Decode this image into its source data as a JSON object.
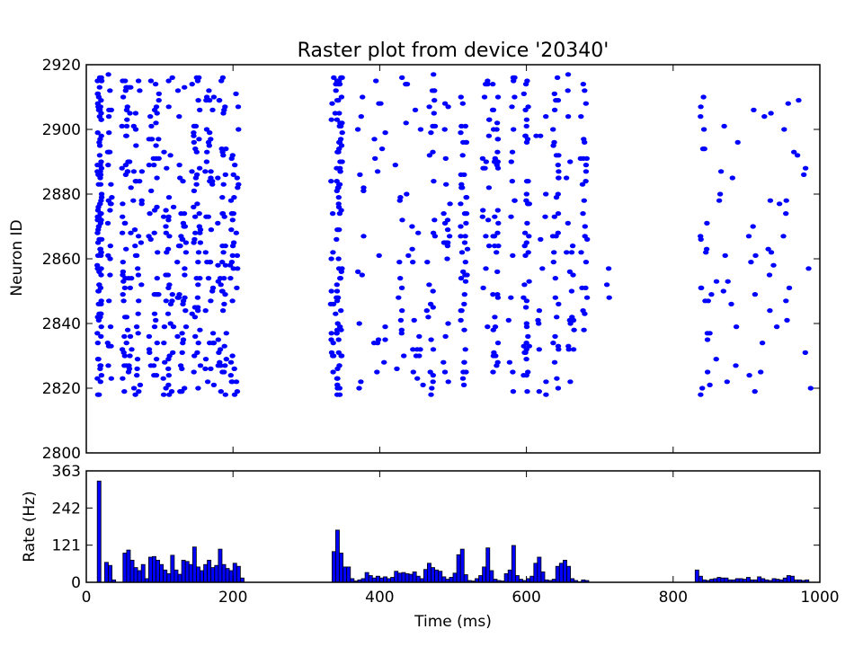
{
  "chart_data": [
    {
      "type": "scatter",
      "title": "Raster plot from device '20340'",
      "xlabel": "",
      "ylabel": "Neuron ID",
      "xlim": [
        0,
        1000
      ],
      "ylim": [
        2800,
        2920
      ],
      "yticks": [
        2800,
        2820,
        2840,
        2860,
        2880,
        2900,
        2920
      ],
      "marker_color": "#0000ff",
      "neuron_id_range": [
        2818,
        2917
      ],
      "spike_bursts": [
        {
          "t": 18,
          "spread": 3,
          "count": 100,
          "ymin": 2818,
          "ymax": 2917
        },
        {
          "t": 32,
          "spread": 3,
          "count": 28,
          "ymin": 2818,
          "ymax": 2917
        },
        {
          "t": 55,
          "spread": 7,
          "count": 60,
          "ymin": 2818,
          "ymax": 2917
        },
        {
          "t": 70,
          "spread": 6,
          "count": 34,
          "ymin": 2818,
          "ymax": 2917
        },
        {
          "t": 92,
          "spread": 7,
          "count": 46,
          "ymin": 2818,
          "ymax": 2917
        },
        {
          "t": 112,
          "spread": 7,
          "count": 42,
          "ymin": 2818,
          "ymax": 2917
        },
        {
          "t": 130,
          "spread": 6,
          "count": 40,
          "ymin": 2818,
          "ymax": 2917
        },
        {
          "t": 150,
          "spread": 6,
          "count": 50,
          "ymin": 2818,
          "ymax": 2917
        },
        {
          "t": 168,
          "spread": 6,
          "count": 40,
          "ymin": 2818,
          "ymax": 2917
        },
        {
          "t": 185,
          "spread": 6,
          "count": 48,
          "ymin": 2818,
          "ymax": 2917
        },
        {
          "t": 202,
          "spread": 6,
          "count": 38,
          "ymin": 2818,
          "ymax": 2917
        },
        {
          "t": 338,
          "spread": 5,
          "count": 28,
          "ymin": 2818,
          "ymax": 2917
        },
        {
          "t": 345,
          "spread": 4,
          "count": 70,
          "ymin": 2818,
          "ymax": 2917
        },
        {
          "t": 375,
          "spread": 5,
          "count": 12,
          "ymin": 2818,
          "ymax": 2917
        },
        {
          "t": 400,
          "spread": 8,
          "count": 16,
          "ymin": 2818,
          "ymax": 2917
        },
        {
          "t": 430,
          "spread": 10,
          "count": 20,
          "ymin": 2818,
          "ymax": 2917
        },
        {
          "t": 452,
          "spread": 8,
          "count": 16,
          "ymin": 2818,
          "ymax": 2917
        },
        {
          "t": 470,
          "spread": 6,
          "count": 30,
          "ymin": 2818,
          "ymax": 2917
        },
        {
          "t": 490,
          "spread": 6,
          "count": 22,
          "ymin": 2818,
          "ymax": 2917
        },
        {
          "t": 515,
          "spread": 5,
          "count": 45,
          "ymin": 2818,
          "ymax": 2917
        },
        {
          "t": 545,
          "spread": 5,
          "count": 20,
          "ymin": 2818,
          "ymax": 2917
        },
        {
          "t": 558,
          "spread": 4,
          "count": 38,
          "ymin": 2818,
          "ymax": 2917
        },
        {
          "t": 580,
          "spread": 5,
          "count": 18,
          "ymin": 2818,
          "ymax": 2917
        },
        {
          "t": 600,
          "spread": 4,
          "count": 44,
          "ymin": 2818,
          "ymax": 2917
        },
        {
          "t": 620,
          "spread": 8,
          "count": 14,
          "ymin": 2818,
          "ymax": 2917
        },
        {
          "t": 640,
          "spread": 4,
          "count": 34,
          "ymin": 2818,
          "ymax": 2917
        },
        {
          "t": 660,
          "spread": 6,
          "count": 22,
          "ymin": 2818,
          "ymax": 2917
        },
        {
          "t": 678,
          "spread": 5,
          "count": 26,
          "ymin": 2818,
          "ymax": 2917
        },
        {
          "t": 710,
          "spread": 4,
          "count": 3,
          "ymin": 2840,
          "ymax": 2885
        },
        {
          "t": 842,
          "spread": 5,
          "count": 18,
          "ymin": 2818,
          "ymax": 2910
        },
        {
          "t": 870,
          "spread": 25,
          "count": 20,
          "ymin": 2818,
          "ymax": 2910
        },
        {
          "t": 915,
          "spread": 22,
          "count": 18,
          "ymin": 2818,
          "ymax": 2910
        },
        {
          "t": 965,
          "spread": 25,
          "count": 18,
          "ymin": 2818,
          "ymax": 2910
        }
      ]
    },
    {
      "type": "bar",
      "xlabel": "Time (ms)",
      "ylabel": "Rate (Hz)",
      "xlim": [
        0,
        1000
      ],
      "ylim": [
        0,
        363
      ],
      "xticks": [
        "0",
        "200",
        "400",
        "600",
        "800",
        "1000"
      ],
      "xtick_values": [
        0,
        200,
        400,
        600,
        800,
        1000
      ],
      "yticks": [
        "0",
        "121",
        "242",
        "363"
      ],
      "ytick_values": [
        0,
        121,
        242,
        363
      ],
      "bin_width": 5,
      "bar_color": "#0000ff",
      "bars": [
        [
          15,
          330
        ],
        [
          25,
          65
        ],
        [
          30,
          55
        ],
        [
          35,
          8
        ],
        [
          50,
          95
        ],
        [
          55,
          105
        ],
        [
          60,
          72
        ],
        [
          65,
          48
        ],
        [
          70,
          38
        ],
        [
          75,
          58
        ],
        [
          80,
          12
        ],
        [
          85,
          82
        ],
        [
          90,
          84
        ],
        [
          95,
          72
        ],
        [
          100,
          58
        ],
        [
          105,
          40
        ],
        [
          110,
          28
        ],
        [
          115,
          88
        ],
        [
          120,
          40
        ],
        [
          125,
          26
        ],
        [
          130,
          72
        ],
        [
          135,
          68
        ],
        [
          140,
          58
        ],
        [
          145,
          115
        ],
        [
          150,
          50
        ],
        [
          155,
          38
        ],
        [
          160,
          58
        ],
        [
          165,
          72
        ],
        [
          170,
          48
        ],
        [
          175,
          55
        ],
        [
          180,
          108
        ],
        [
          185,
          58
        ],
        [
          190,
          45
        ],
        [
          195,
          38
        ],
        [
          200,
          62
        ],
        [
          205,
          52
        ],
        [
          210,
          14
        ],
        [
          335,
          100
        ],
        [
          340,
          170
        ],
        [
          345,
          95
        ],
        [
          350,
          50
        ],
        [
          355,
          50
        ],
        [
          360,
          12
        ],
        [
          365,
          4
        ],
        [
          370,
          8
        ],
        [
          375,
          12
        ],
        [
          380,
          32
        ],
        [
          385,
          22
        ],
        [
          390,
          14
        ],
        [
          395,
          20
        ],
        [
          400,
          14
        ],
        [
          405,
          18
        ],
        [
          410,
          12
        ],
        [
          415,
          16
        ],
        [
          420,
          36
        ],
        [
          425,
          30
        ],
        [
          430,
          32
        ],
        [
          435,
          28
        ],
        [
          440,
          26
        ],
        [
          445,
          34
        ],
        [
          450,
          20
        ],
        [
          455,
          12
        ],
        [
          460,
          42
        ],
        [
          465,
          62
        ],
        [
          470,
          48
        ],
        [
          475,
          40
        ],
        [
          480,
          36
        ],
        [
          485,
          18
        ],
        [
          490,
          10
        ],
        [
          495,
          16
        ],
        [
          500,
          30
        ],
        [
          505,
          90
        ],
        [
          510,
          108
        ],
        [
          515,
          25
        ],
        [
          520,
          6
        ],
        [
          525,
          4
        ],
        [
          530,
          12
        ],
        [
          535,
          22
        ],
        [
          540,
          50
        ],
        [
          545,
          112
        ],
        [
          550,
          38
        ],
        [
          555,
          10
        ],
        [
          560,
          6
        ],
        [
          565,
          4
        ],
        [
          570,
          28
        ],
        [
          575,
          40
        ],
        [
          580,
          120
        ],
        [
          585,
          22
        ],
        [
          590,
          10
        ],
        [
          595,
          6
        ],
        [
          600,
          12
        ],
        [
          605,
          20
        ],
        [
          610,
          62
        ],
        [
          615,
          82
        ],
        [
          620,
          34
        ],
        [
          625,
          8
        ],
        [
          630,
          6
        ],
        [
          635,
          10
        ],
        [
          640,
          52
        ],
        [
          645,
          62
        ],
        [
          650,
          72
        ],
        [
          655,
          52
        ],
        [
          660,
          12
        ],
        [
          665,
          6
        ],
        [
          670,
          2
        ],
        [
          675,
          8
        ],
        [
          680,
          6
        ],
        [
          830,
          40
        ],
        [
          835,
          20
        ],
        [
          840,
          8
        ],
        [
          845,
          6
        ],
        [
          850,
          10
        ],
        [
          855,
          12
        ],
        [
          860,
          16
        ],
        [
          865,
          14
        ],
        [
          870,
          14
        ],
        [
          875,
          8
        ],
        [
          880,
          8
        ],
        [
          885,
          12
        ],
        [
          890,
          12
        ],
        [
          895,
          10
        ],
        [
          900,
          16
        ],
        [
          905,
          8
        ],
        [
          910,
          8
        ],
        [
          915,
          18
        ],
        [
          920,
          12
        ],
        [
          925,
          8
        ],
        [
          930,
          6
        ],
        [
          935,
          12
        ],
        [
          940,
          10
        ],
        [
          945,
          8
        ],
        [
          950,
          14
        ],
        [
          955,
          22
        ],
        [
          960,
          20
        ],
        [
          965,
          8
        ],
        [
          970,
          8
        ],
        [
          975,
          6
        ],
        [
          980,
          8
        ]
      ]
    }
  ]
}
